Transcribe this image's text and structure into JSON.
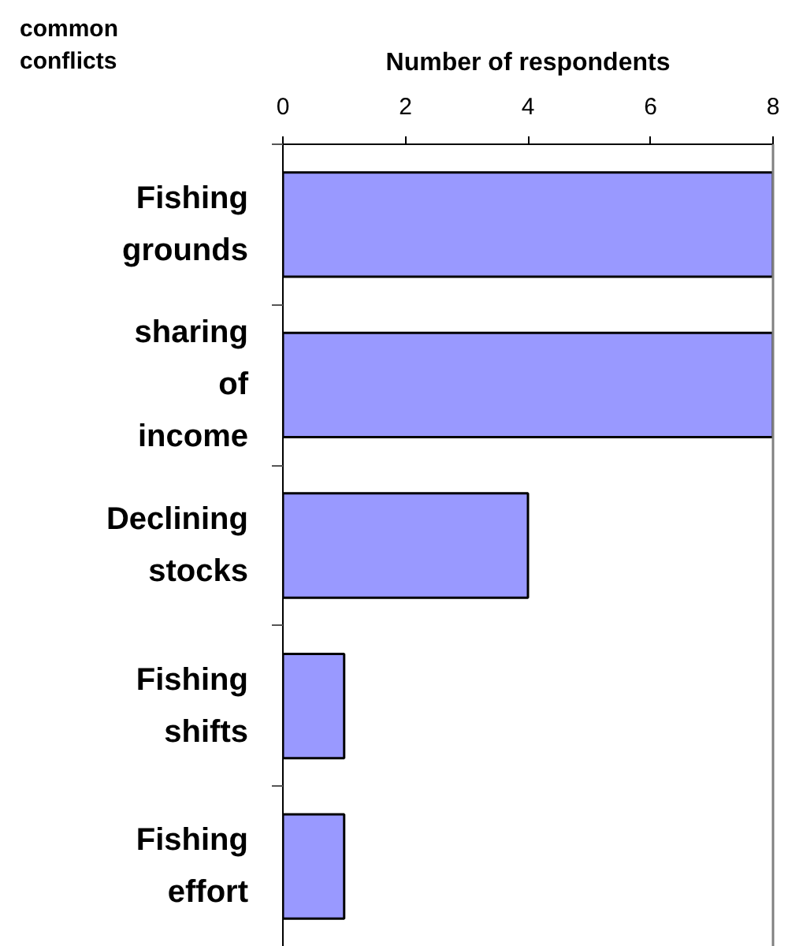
{
  "chart_data": {
    "type": "bar",
    "orientation": "horizontal",
    "xlabel": "Number of respondents",
    "ylabel": "common conflicts",
    "categories": [
      "Fishing grounds",
      "sharing of income",
      "Declining stocks",
      "Fishing shifts",
      "Fishing effort"
    ],
    "values": [
      8,
      8,
      4,
      1,
      1
    ],
    "color": "#9999ff",
    "xlim": [
      0,
      8
    ],
    "xticks": [
      0,
      2,
      4,
      6,
      8
    ]
  }
}
